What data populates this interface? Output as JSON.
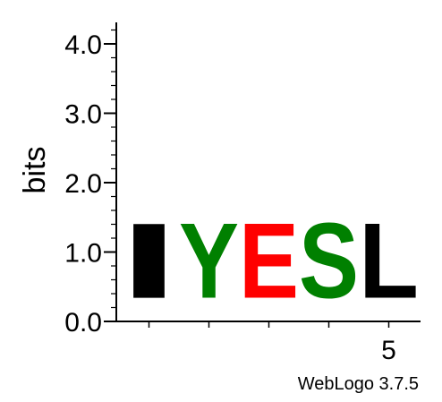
{
  "chart_data": {
    "type": "sequence-logo",
    "ylabel": "bits",
    "ylim": [
      0,
      4.3
    ],
    "yticks": [
      {
        "value": 0.0,
        "label": "0.0"
      },
      {
        "value": 1.0,
        "label": "1.0"
      },
      {
        "value": 2.0,
        "label": "2.0"
      },
      {
        "value": 3.0,
        "label": "3.0"
      },
      {
        "value": 4.0,
        "label": "4.0"
      }
    ],
    "yminor_step": 0.2,
    "positions": [
      1,
      2,
      3,
      4,
      5
    ],
    "xtick_labels": [
      "",
      "",
      "",
      "",
      "5"
    ],
    "columns": [
      {
        "position": 1,
        "letter": "I",
        "bits": 1.73,
        "color": "#000000"
      },
      {
        "position": 2,
        "letter": "Y",
        "bits": 1.73,
        "color": "#008000"
      },
      {
        "position": 3,
        "letter": "E",
        "bits": 1.73,
        "color": "#ff0000"
      },
      {
        "position": 4,
        "letter": "S",
        "bits": 1.73,
        "color": "#008000"
      },
      {
        "position": 5,
        "letter": "L",
        "bits": 1.73,
        "color": "#000000"
      }
    ],
    "footer": "WebLogo 3.7.5"
  }
}
